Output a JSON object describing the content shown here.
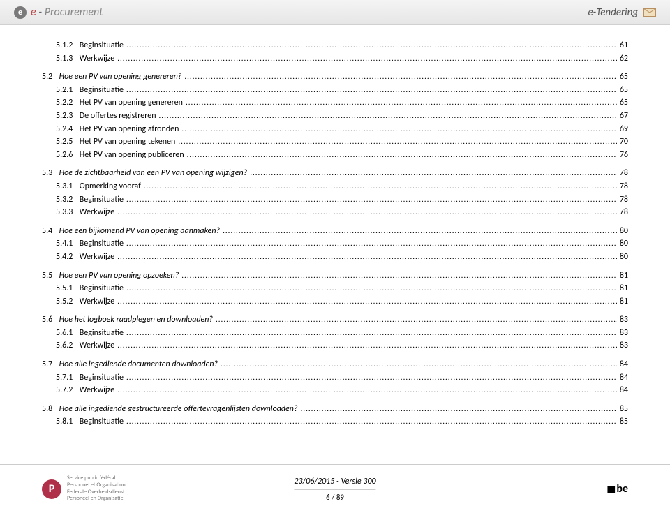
{
  "header": {
    "logo_e": "e",
    "logo_dash": " - ",
    "logo_proc": "Procurement",
    "right_label": "e-Tendering"
  },
  "toc": [
    {
      "lvl": 3,
      "num": "5.1.2",
      "title": "Beginsituatie",
      "page": "61",
      "italic": false
    },
    {
      "lvl": 3,
      "num": "5.1.3",
      "title": "Werkwijze",
      "page": "62",
      "italic": false
    },
    {
      "gap": true
    },
    {
      "lvl": 2,
      "num": "5.2",
      "title": "Hoe een PV van opening genereren?",
      "page": "65",
      "italic": true
    },
    {
      "lvl": 3,
      "num": "5.2.1",
      "title": "Beginsituatie",
      "page": "65",
      "italic": false
    },
    {
      "lvl": 3,
      "num": "5.2.2",
      "title": "Het PV van opening genereren",
      "page": "65",
      "italic": false
    },
    {
      "lvl": 3,
      "num": "5.2.3",
      "title": "De offertes registreren",
      "page": "67",
      "italic": false
    },
    {
      "lvl": 3,
      "num": "5.2.4",
      "title": "Het PV van opening afronden",
      "page": "69",
      "italic": false
    },
    {
      "lvl": 3,
      "num": "5.2.5",
      "title": "Het PV van opening tekenen",
      "page": "70",
      "italic": false
    },
    {
      "lvl": 3,
      "num": "5.2.6",
      "title": "Het PV van opening publiceren",
      "page": "76",
      "italic": false
    },
    {
      "gap": true
    },
    {
      "lvl": 2,
      "num": "5.3",
      "title": "Hoe de zichtbaarheid van een PV van opening wijzigen?",
      "page": "78",
      "italic": true
    },
    {
      "lvl": 3,
      "num": "5.3.1",
      "title": "Opmerking vooraf",
      "page": "78",
      "italic": false
    },
    {
      "lvl": 3,
      "num": "5.3.2",
      "title": "Beginsituatie",
      "page": "78",
      "italic": false
    },
    {
      "lvl": 3,
      "num": "5.3.3",
      "title": "Werkwijze",
      "page": "78",
      "italic": false
    },
    {
      "gap": true
    },
    {
      "lvl": 2,
      "num": "5.4",
      "title": "Hoe een bijkomend PV van opening aanmaken?",
      "page": "80",
      "italic": true
    },
    {
      "lvl": 3,
      "num": "5.4.1",
      "title": "Beginsituatie",
      "page": "80",
      "italic": false
    },
    {
      "lvl": 3,
      "num": "5.4.2",
      "title": "Werkwijze",
      "page": "80",
      "italic": false
    },
    {
      "gap": true
    },
    {
      "lvl": 2,
      "num": "5.5",
      "title": "Hoe een PV van opening opzoeken?",
      "page": "81",
      "italic": true
    },
    {
      "lvl": 3,
      "num": "5.5.1",
      "title": "Beginsituatie",
      "page": "81",
      "italic": false
    },
    {
      "lvl": 3,
      "num": "5.5.2",
      "title": "Werkwijze",
      "page": "81",
      "italic": false
    },
    {
      "gap": true
    },
    {
      "lvl": 2,
      "num": "5.6",
      "title": "Hoe het logboek raadplegen en downloaden?",
      "page": "83",
      "italic": true
    },
    {
      "lvl": 3,
      "num": "5.6.1",
      "title": "Beginsituatie",
      "page": "83",
      "italic": false
    },
    {
      "lvl": 3,
      "num": "5.6.2",
      "title": "Werkwijze",
      "page": "83",
      "italic": false
    },
    {
      "gap": true
    },
    {
      "lvl": 2,
      "num": "5.7",
      "title": "Hoe alle ingediende documenten downloaden?",
      "page": "84",
      "italic": true
    },
    {
      "lvl": 3,
      "num": "5.7.1",
      "title": "Beginsituatie",
      "page": "84",
      "italic": false
    },
    {
      "lvl": 3,
      "num": "5.7.2",
      "title": "Werkwijze",
      "page": "84",
      "italic": false
    },
    {
      "gap": true
    },
    {
      "lvl": 2,
      "num": "5.8",
      "title": "Hoe alle ingediende gestructureerde offertevragenlijsten downloaden?",
      "page": "85",
      "italic": true
    },
    {
      "lvl": 3,
      "num": "5.8.1",
      "title": "Beginsituatie",
      "page": "85",
      "italic": false
    }
  ],
  "footer": {
    "org_line1": "Service public fédéral",
    "org_line2": "Personnel et Organisation",
    "org_line3": "Federale Overheidsdienst",
    "org_line4": "Personeel en Organisatie",
    "date_version": "23/06/2015 - Versie 300",
    "page_num": "6 / 89",
    "be": "be"
  },
  "colors": {
    "header_bg_top": "#f4f4f4",
    "header_bg_bottom": "#e6e6e6",
    "brand_red": "#b94a4a",
    "badge_color": "#b0304a",
    "text": "#000000",
    "muted": "#777777"
  }
}
